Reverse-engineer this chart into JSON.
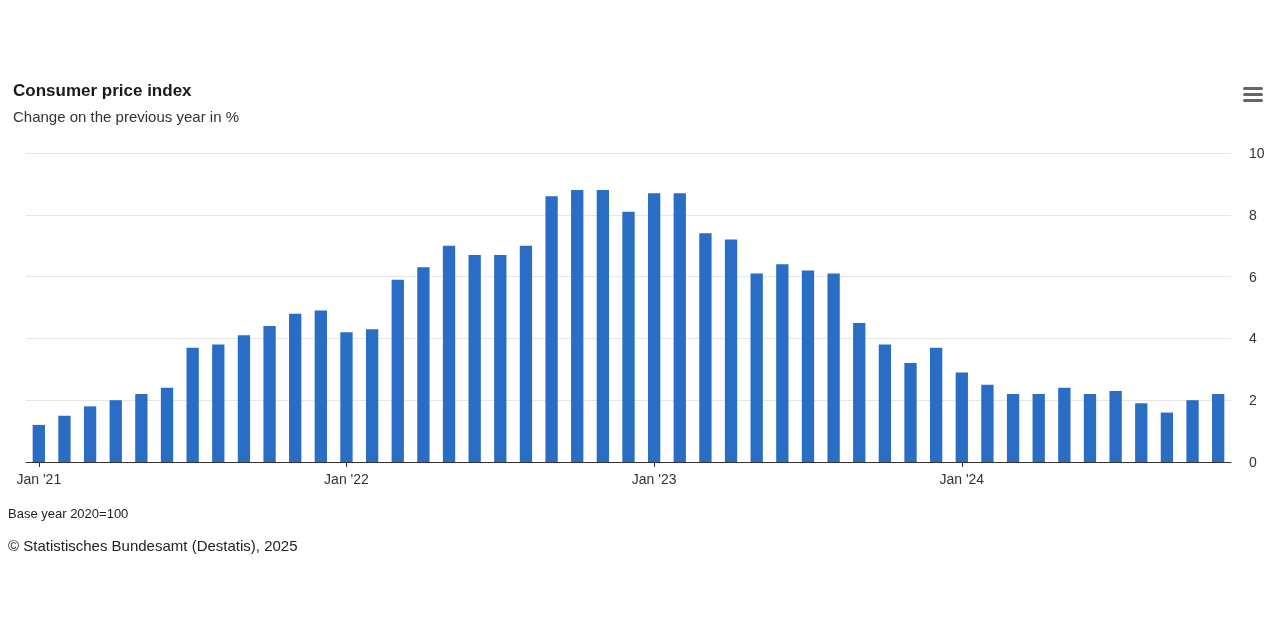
{
  "chart_data": {
    "type": "bar",
    "title": "Consumer price index",
    "subtitle": "Change on the previous year in %",
    "categories": [
      "Jan '21",
      null,
      null,
      null,
      null,
      null,
      null,
      null,
      null,
      null,
      null,
      null,
      "Jan '22",
      null,
      null,
      null,
      null,
      null,
      null,
      null,
      null,
      null,
      null,
      null,
      "Jan '23",
      null,
      null,
      null,
      null,
      null,
      null,
      null,
      null,
      null,
      null,
      null,
      "Jan '24",
      null,
      null,
      null,
      null,
      null,
      null,
      null,
      null,
      null,
      null
    ],
    "values": [
      1.2,
      1.5,
      1.8,
      2.0,
      2.2,
      2.4,
      3.7,
      3.8,
      4.1,
      4.4,
      4.8,
      4.9,
      4.2,
      4.3,
      5.9,
      6.3,
      7.0,
      6.7,
      6.7,
      7.0,
      8.6,
      8.8,
      8.8,
      8.1,
      8.7,
      8.7,
      7.4,
      7.2,
      6.1,
      6.4,
      6.2,
      6.1,
      4.5,
      3.8,
      3.2,
      3.7,
      2.9,
      2.5,
      2.2,
      2.2,
      2.4,
      2.2,
      2.3,
      1.9,
      1.6,
      2.0,
      2.2
    ],
    "color": "#2a6dc5",
    "ylim": [
      0,
      10
    ],
    "yticks": [
      0,
      2,
      4,
      6,
      8,
      10
    ],
    "grid": "y",
    "annotations": [
      "Base year 2020=100",
      "© Statistisches Bundesamt (Destatis), 2025"
    ]
  }
}
